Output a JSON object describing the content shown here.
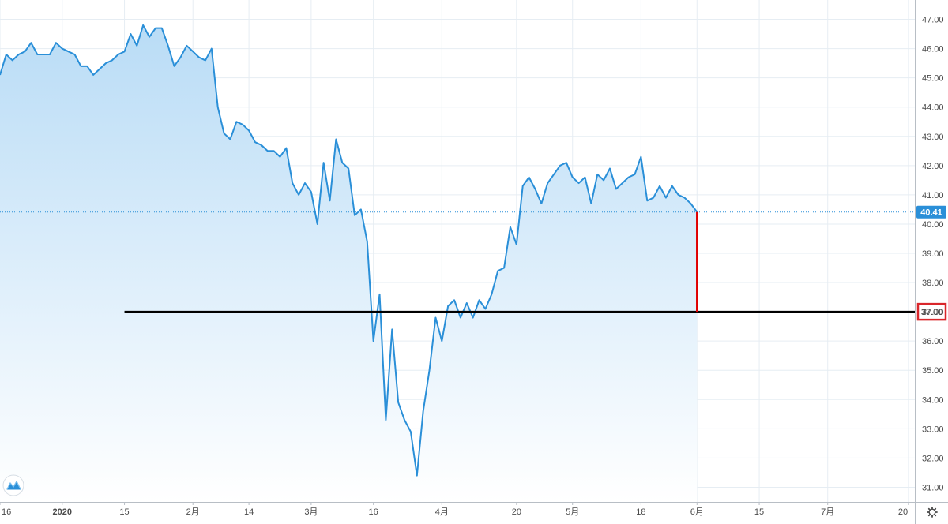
{
  "chart_data": {
    "type": "area",
    "ylim": [
      30.5,
      47.5
    ],
    "y_ticks": [
      "31.00",
      "32.00",
      "33.00",
      "34.00",
      "35.00",
      "36.00",
      "37.00",
      "38.00",
      "39.00",
      "40.00",
      "41.00",
      "42.00",
      "43.00",
      "44.00",
      "45.00",
      "46.00",
      "47.00"
    ],
    "x_labels": [
      {
        "label": "16",
        "index": 0
      },
      {
        "label": "2020",
        "index": 10,
        "bold": true
      },
      {
        "label": "15",
        "index": 20
      },
      {
        "label": "2月",
        "index": 31
      },
      {
        "label": "14",
        "index": 40
      },
      {
        "label": "3月",
        "index": 50
      },
      {
        "label": "16",
        "index": 60
      },
      {
        "label": "4月",
        "index": 71
      },
      {
        "label": "20",
        "index": 83
      },
      {
        "label": "5月",
        "index": 92
      },
      {
        "label": "18",
        "index": 103
      },
      {
        "label": "6月",
        "index": 112
      },
      {
        "label": "15",
        "index": 122
      },
      {
        "label": "7月",
        "index": 133
      },
      {
        "label": "20",
        "index": 146
      }
    ],
    "x_range": [
      0,
      147
    ],
    "grid": true,
    "series": [
      {
        "values": [
          45.1,
          45.8,
          45.6,
          45.8,
          45.9,
          46.2,
          45.8,
          45.8,
          45.8,
          46.2,
          46.0,
          45.9,
          45.8,
          45.4,
          45.4,
          45.1,
          45.3,
          45.5,
          45.6,
          45.8,
          45.9,
          46.5,
          46.1,
          46.8,
          46.4,
          46.7,
          46.7,
          46.1,
          45.4,
          45.7,
          46.1,
          45.9,
          45.7,
          45.6,
          46.0,
          44.0,
          43.1,
          42.9,
          43.5,
          43.4,
          43.2,
          42.8,
          42.7,
          42.5,
          42.5,
          42.3,
          42.6,
          41.4,
          41.0,
          41.4,
          41.1,
          40.0,
          42.1,
          40.8,
          42.9,
          42.1,
          41.9,
          40.3,
          40.5,
          39.4,
          36.0,
          37.6,
          33.3,
          36.4,
          33.9,
          33.3,
          32.9,
          31.4,
          33.6,
          35.0,
          36.8,
          36.0,
          37.2,
          37.4,
          36.8,
          37.3,
          36.8,
          37.4,
          37.1,
          37.6,
          38.4,
          38.5,
          39.9,
          39.3,
          41.3,
          41.6,
          41.2,
          40.7,
          41.4,
          41.7,
          42.0,
          42.1,
          41.6,
          41.4,
          41.6,
          40.7,
          41.7,
          41.5,
          41.9,
          41.2,
          41.4,
          41.6,
          41.7,
          42.3,
          40.8,
          40.9,
          41.3,
          40.9,
          41.3,
          41.0,
          40.9,
          40.7,
          40.41
        ]
      }
    ],
    "last_price_label": "40.41",
    "horizontal_line": {
      "value": 37.0,
      "label": "37.00",
      "start_index": 20
    },
    "vertical_marker": {
      "index": 112,
      "from": 37.0,
      "to": 40.41
    },
    "colors": {
      "line": "#2a8fd8",
      "area_top": "#b9dcf6",
      "area_bottom": "#ffffff",
      "price_badge": "#2a8fd8",
      "horizontal_line": "#000000",
      "vertical_marker": "#e00000",
      "highlight_box": "#d9262b",
      "grid": "#e6edf3",
      "axis": "#b8bec5"
    },
    "logo_icon": "tradingview-logo-icon",
    "settings_icon": "gear-icon"
  }
}
